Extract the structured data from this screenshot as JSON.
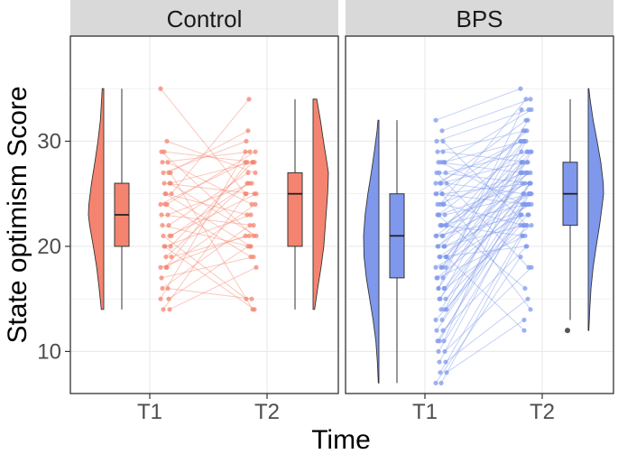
{
  "chart_data": {
    "type": "raincloud",
    "ylabel": "State optimism Score",
    "xlabel": "Time",
    "ylim": [
      6,
      40
    ],
    "yticks": [
      10,
      20,
      30
    ],
    "categories": [
      "T1",
      "T2"
    ],
    "grid": true,
    "colors": {
      "Control": "#f4846f",
      "BPS": "#7f98ec",
      "outlier": "#555555",
      "strip": "#d9d9d9",
      "grid": "#ebebeb"
    },
    "panels": [
      {
        "name": "Control",
        "color_key": "Control",
        "box": {
          "T1": {
            "min": 14,
            "q1": 20,
            "median": 23,
            "q3": 26,
            "max": 35
          },
          "T2": {
            "min": 14,
            "q1": 20,
            "median": 25,
            "q3": 27,
            "max": 34
          }
        },
        "density": {
          "T1": [
            [
              14,
              0.16
            ],
            [
              16,
              0.3
            ],
            [
              18,
              0.46
            ],
            [
              20,
              0.68
            ],
            [
              22,
              0.92
            ],
            [
              23,
              1.0
            ],
            [
              24,
              0.97
            ],
            [
              26,
              0.8
            ],
            [
              28,
              0.58
            ],
            [
              30,
              0.38
            ],
            [
              32,
              0.22
            ],
            [
              35,
              0.1
            ]
          ],
          "T2": [
            [
              14,
              0.1
            ],
            [
              16,
              0.3
            ],
            [
              18,
              0.52
            ],
            [
              20,
              0.7
            ],
            [
              22,
              0.8
            ],
            [
              24,
              0.9
            ],
            [
              25,
              0.95
            ],
            [
              26,
              0.98
            ],
            [
              27,
              1.0
            ],
            [
              28,
              0.9
            ],
            [
              30,
              0.68
            ],
            [
              32,
              0.48
            ],
            [
              34,
              0.24
            ]
          ]
        },
        "pairs": [
          [
            35,
            25
          ],
          [
            30,
            27
          ],
          [
            29,
            21
          ],
          [
            28,
            24
          ],
          [
            28,
            29
          ],
          [
            27,
            31
          ],
          [
            27,
            30
          ],
          [
            26,
            21
          ],
          [
            26,
            25
          ],
          [
            26,
            28
          ],
          [
            25,
            20
          ],
          [
            25,
            34
          ],
          [
            25,
            23
          ],
          [
            24,
            28
          ],
          [
            24,
            29
          ],
          [
            23,
            22
          ],
          [
            23,
            26
          ],
          [
            22,
            20
          ],
          [
            22,
            27
          ],
          [
            21,
            15
          ],
          [
            21,
            25
          ],
          [
            20,
            14
          ],
          [
            20,
            28
          ],
          [
            20,
            23
          ],
          [
            19,
            21
          ],
          [
            19,
            26
          ],
          [
            18,
            21
          ],
          [
            18,
            24
          ],
          [
            17,
            19
          ],
          [
            16,
            15
          ],
          [
            16,
            22
          ],
          [
            15,
            20
          ],
          [
            14,
            25
          ],
          [
            14,
            18
          ],
          [
            29,
            28
          ],
          [
            27,
            14
          ],
          [
            24,
            19
          ],
          [
            21,
            26
          ],
          [
            18,
            28
          ],
          [
            15,
            29
          ]
        ]
      },
      {
        "name": "BPS",
        "color_key": "BPS",
        "box": {
          "T1": {
            "min": 7,
            "q1": 17,
            "median": 21,
            "q3": 25,
            "max": 32
          },
          "T2": {
            "min": 13,
            "q1": 22,
            "median": 25,
            "q3": 28,
            "max": 34
          }
        },
        "outliers": {
          "T2": [
            12
          ]
        },
        "density": {
          "T1": [
            [
              7,
              0.04
            ],
            [
              9,
              0.1
            ],
            [
              11,
              0.2
            ],
            [
              13,
              0.38
            ],
            [
              15,
              0.6
            ],
            [
              17,
              0.82
            ],
            [
              19,
              0.97
            ],
            [
              21,
              1.0
            ],
            [
              23,
              0.9
            ],
            [
              25,
              0.72
            ],
            [
              27,
              0.5
            ],
            [
              29,
              0.3
            ],
            [
              31,
              0.12
            ],
            [
              32,
              0.06
            ]
          ],
          "T2": [
            [
              12,
              0.04
            ],
            [
              14,
              0.1
            ],
            [
              16,
              0.18
            ],
            [
              18,
              0.32
            ],
            [
              20,
              0.52
            ],
            [
              22,
              0.74
            ],
            [
              24,
              0.92
            ],
            [
              25,
              1.0
            ],
            [
              26,
              0.98
            ],
            [
              28,
              0.82
            ],
            [
              30,
              0.58
            ],
            [
              32,
              0.32
            ],
            [
              34,
              0.12
            ],
            [
              35,
              0.04
            ]
          ]
        },
        "pairs": [
          [
            32,
            35
          ],
          [
            31,
            34
          ],
          [
            30,
            33
          ],
          [
            29,
            28
          ],
          [
            29,
            31
          ],
          [
            28,
            30
          ],
          [
            28,
            27
          ],
          [
            28,
            33
          ],
          [
            27,
            26
          ],
          [
            27,
            29
          ],
          [
            26,
            32
          ],
          [
            26,
            25
          ],
          [
            26,
            28
          ],
          [
            25,
            30
          ],
          [
            25,
            26
          ],
          [
            25,
            24
          ],
          [
            24,
            31
          ],
          [
            24,
            27
          ],
          [
            24,
            22
          ],
          [
            23,
            29
          ],
          [
            23,
            25
          ],
          [
            23,
            26
          ],
          [
            22,
            28
          ],
          [
            22,
            24
          ],
          [
            22,
            30
          ],
          [
            22,
            21
          ],
          [
            21,
            27
          ],
          [
            21,
            25
          ],
          [
            21,
            23
          ],
          [
            21,
            29
          ],
          [
            20,
            26
          ],
          [
            20,
            22
          ],
          [
            20,
            28
          ],
          [
            20,
            24
          ],
          [
            19,
            25
          ],
          [
            19,
            27
          ],
          [
            19,
            20
          ],
          [
            19,
            30
          ],
          [
            18,
            26
          ],
          [
            18,
            23
          ],
          [
            18,
            29
          ],
          [
            17,
            24
          ],
          [
            17,
            27
          ],
          [
            17,
            21
          ],
          [
            16,
            25
          ],
          [
            16,
            28
          ],
          [
            16,
            22
          ],
          [
            15,
            26
          ],
          [
            15,
            23
          ],
          [
            15,
            30
          ],
          [
            14,
            24
          ],
          [
            14,
            27
          ],
          [
            13,
            22
          ],
          [
            13,
            26
          ],
          [
            12,
            25
          ],
          [
            12,
            20
          ],
          [
            11,
            24
          ],
          [
            11,
            28
          ],
          [
            10,
            23
          ],
          [
            10,
            18
          ],
          [
            9,
            25
          ],
          [
            9,
            15
          ],
          [
            8,
            22
          ],
          [
            8,
            13
          ],
          [
            7,
            21
          ],
          [
            7,
            19
          ],
          [
            25,
            14
          ],
          [
            27,
            18
          ],
          [
            30,
            22
          ],
          [
            23,
            16
          ],
          [
            20,
            31
          ],
          [
            16,
            33
          ],
          [
            14,
            29
          ],
          [
            11,
            26
          ],
          [
            18,
            32
          ],
          [
            24,
            34
          ],
          [
            19,
            12
          ],
          [
            28,
            24
          ],
          [
            26,
            30
          ],
          [
            22,
            27
          ]
        ]
      }
    ]
  }
}
